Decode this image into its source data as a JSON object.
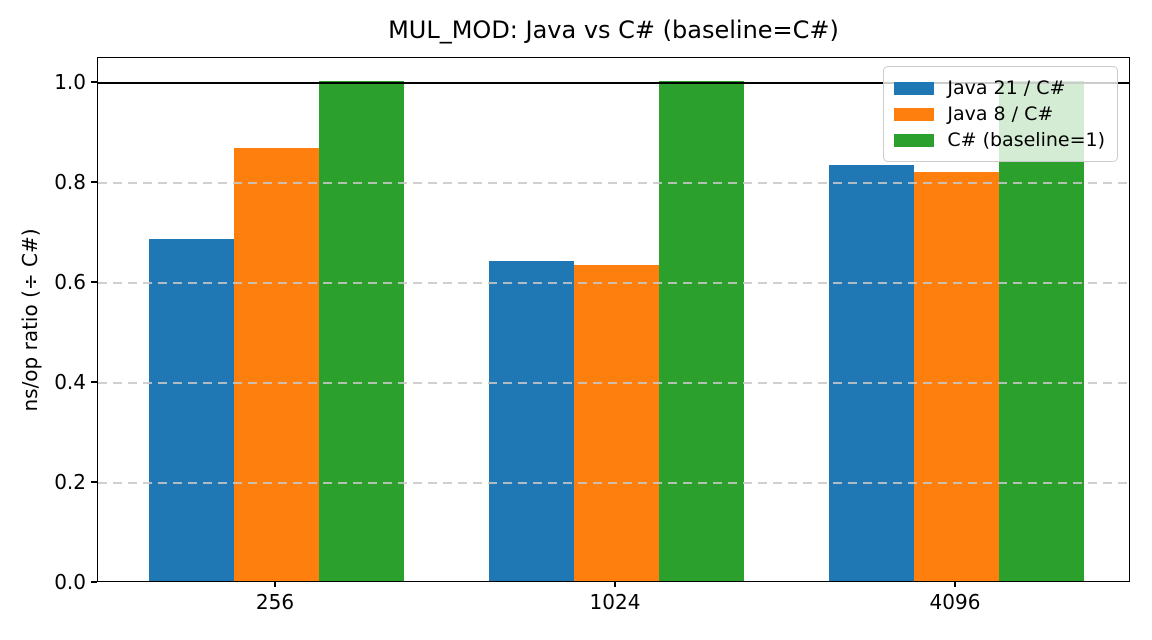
{
  "figure": {
    "title": "MUL_MOD: Java vs C# (baseline=C#)",
    "ylabel": "ns/op ratio (÷ C#)"
  },
  "chart_data": {
    "type": "bar",
    "title": "MUL_MOD: Java vs C# (baseline=C#)",
    "xlabel": "",
    "ylabel": "ns/op ratio (÷ C#)",
    "categories": [
      "256",
      "1024",
      "4096"
    ],
    "series": [
      {
        "name": "Java 21 / C#",
        "color": "#1f77b4",
        "values": [
          0.685,
          0.641,
          0.832
        ]
      },
      {
        "name": "Java 8 / C#",
        "color": "#ff7f0e",
        "values": [
          0.866,
          0.633,
          0.818
        ]
      },
      {
        "name": "C# (baseline=1)",
        "color": "#2ca02c",
        "values": [
          1.0,
          1.0,
          1.0
        ]
      }
    ],
    "ylim": [
      0,
      1.05
    ],
    "yticks": [
      0.0,
      0.2,
      0.4,
      0.6,
      0.8,
      1.0
    ],
    "baseline_value": 1.0,
    "grid": {
      "axis": "y",
      "style": "dashed",
      "on": true
    },
    "legend_position": "upper right",
    "legend_entries": [
      "Java 21 / C#",
      "Java 8 / C#",
      "C# (baseline=1)"
    ]
  }
}
